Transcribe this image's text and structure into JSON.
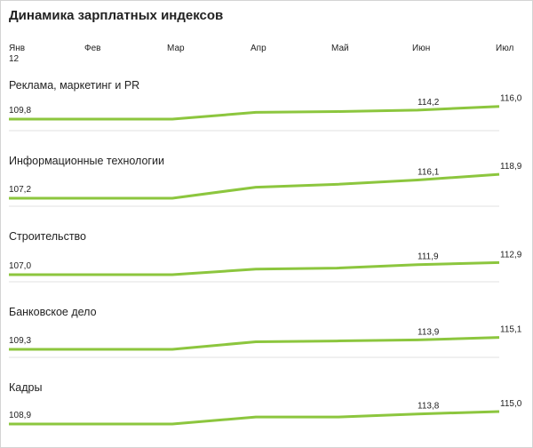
{
  "title": "Динамика зарплатных индексов",
  "year_label": "12",
  "chart_data": {
    "type": "line",
    "title": "Динамика зарплатных индексов",
    "categories": [
      "Янв",
      "Фев",
      "Мар",
      "Апр",
      "Май",
      "Июн",
      "Июл"
    ],
    "line_color": "#8cc63e",
    "grid": false,
    "charts": [
      {
        "name": "Реклама, маркетинг и PR",
        "values": [
          109.8,
          109.8,
          109.8,
          113.1,
          113.5,
          114.2,
          116.0
        ],
        "labels": [
          "109,8",
          "114,2",
          "116,0"
        ]
      },
      {
        "name": "Информационные технологии",
        "values": [
          107.2,
          107.2,
          107.2,
          112.6,
          114.0,
          116.1,
          118.9
        ],
        "labels": [
          "107,2",
          "116,1",
          "118,9"
        ]
      },
      {
        "name": "Строительство",
        "values": [
          107.0,
          107.0,
          107.0,
          109.7,
          110.2,
          111.9,
          112.9
        ],
        "labels": [
          "107,0",
          "111,9",
          "112,9"
        ]
      },
      {
        "name": "Банковское дело",
        "values": [
          109.3,
          109.3,
          109.3,
          113.0,
          113.4,
          113.9,
          115.1
        ],
        "labels": [
          "109,3",
          "113,9",
          "115,1"
        ]
      },
      {
        "name": "Кадры",
        "values": [
          108.9,
          108.9,
          108.9,
          112.3,
          112.3,
          113.8,
          115.0
        ],
        "labels": [
          "108,9",
          "113,8",
          "115,0"
        ]
      }
    ]
  }
}
